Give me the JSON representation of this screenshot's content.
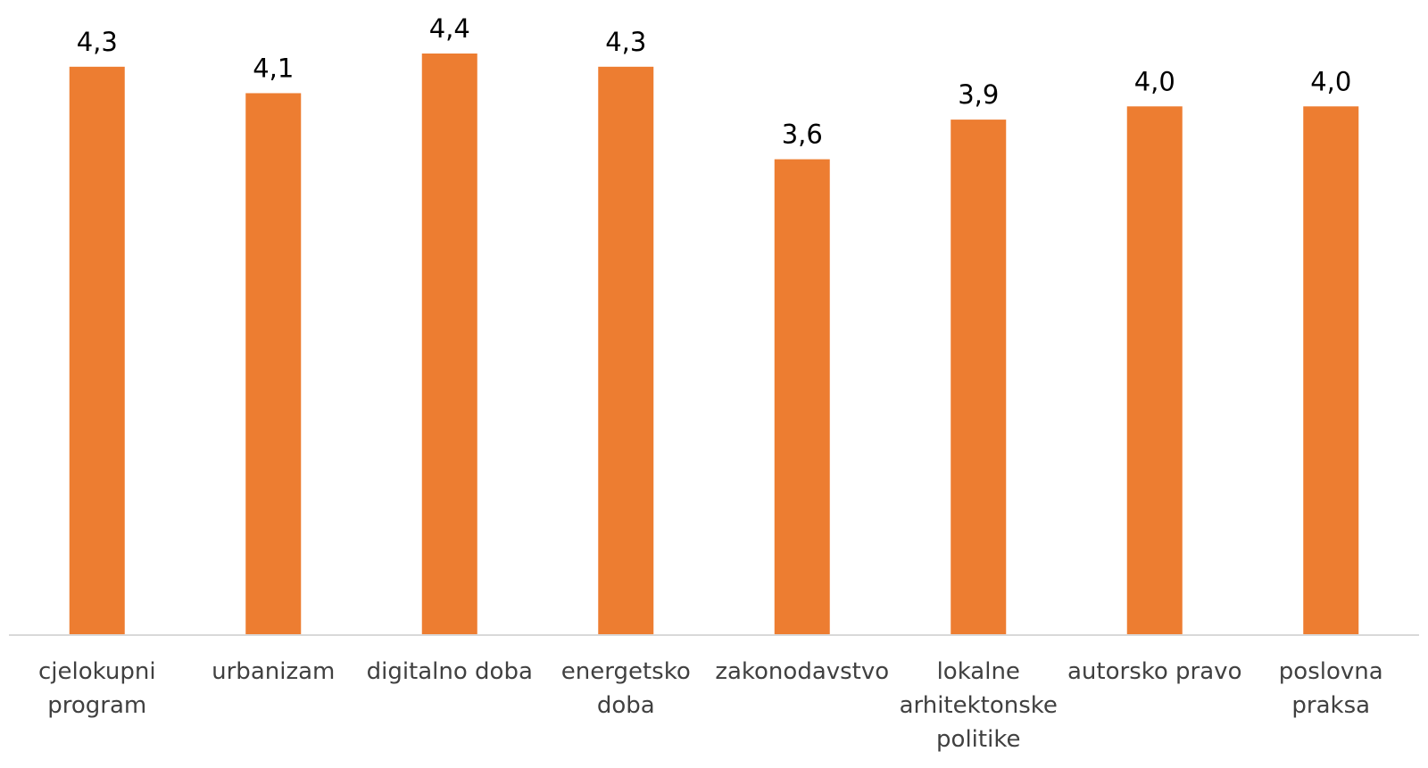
{
  "chart_data": {
    "type": "bar",
    "categories": [
      "cjelokupni\nprogram",
      "urbanizam",
      "digitalno doba",
      "energetsko\ndoba",
      "zakonodavstvo",
      "lokalne\narhitektonske\npolitike",
      "autorsko pravo",
      "poslovna\npraksa"
    ],
    "values": [
      4.3,
      4.1,
      4.4,
      4.3,
      3.6,
      3.9,
      4.0,
      4.0
    ],
    "value_labels": [
      "4,3",
      "4,1",
      "4,4",
      "4,3",
      "3,6",
      "3,9",
      "4,0",
      "4,0"
    ],
    "color": "#ed7d31",
    "ylim": [
      0,
      4.4
    ]
  }
}
